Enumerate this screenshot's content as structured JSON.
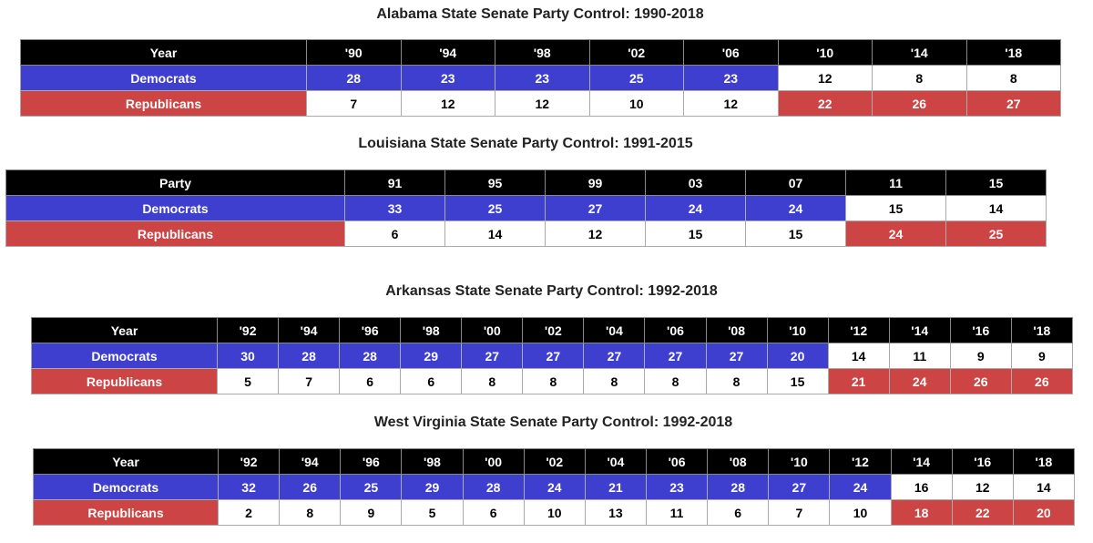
{
  "tables": [
    {
      "title": "Alabama State Senate Party Control: 1990-2018",
      "header": [
        "Year",
        "'90",
        "'94",
        "'98",
        "'02",
        "'06",
        "'10",
        "'14",
        "'18"
      ],
      "rows": [
        {
          "label": "Democrats",
          "values": [
            28,
            23,
            23,
            25,
            23,
            12,
            8,
            8
          ]
        },
        {
          "label": "Republicans",
          "values": [
            7,
            12,
            12,
            10,
            12,
            22,
            26,
            27
          ]
        }
      ]
    },
    {
      "title": "Louisiana State Senate Party Control: 1991-2015",
      "header": [
        "Party",
        "91",
        "95",
        "99",
        "03",
        "07",
        "11",
        "15"
      ],
      "rows": [
        {
          "label": "Democrats",
          "values": [
            33,
            25,
            27,
            24,
            24,
            15,
            14
          ]
        },
        {
          "label": "Republicans",
          "values": [
            6,
            14,
            12,
            15,
            15,
            24,
            25
          ]
        }
      ]
    },
    {
      "title": "Arkansas State Senate Party Control: 1992-2018",
      "header": [
        "Year",
        "'92",
        "'94",
        "'96",
        "'98",
        "'00",
        "'02",
        "'04",
        "'06",
        "'08",
        "'10",
        "'12",
        "'14",
        "'16",
        "'18"
      ],
      "rows": [
        {
          "label": "Democrats",
          "values": [
            30,
            28,
            28,
            29,
            27,
            27,
            27,
            27,
            27,
            20,
            14,
            11,
            9,
            9
          ]
        },
        {
          "label": "Republicans",
          "values": [
            5,
            7,
            6,
            6,
            8,
            8,
            8,
            8,
            8,
            15,
            21,
            24,
            26,
            26
          ]
        }
      ]
    },
    {
      "title": "West Virginia State Senate Party Control: 1992-2018",
      "header": [
        "Year",
        "'92",
        "'94",
        "'96",
        "'98",
        "'00",
        "'02",
        "'04",
        "'06",
        "'08",
        "'10",
        "'12",
        "'14",
        "'16",
        "'18"
      ],
      "rows": [
        {
          "label": "Democrats",
          "values": [
            32,
            26,
            25,
            29,
            28,
            24,
            21,
            23,
            28,
            27,
            24,
            16,
            12,
            14
          ]
        },
        {
          "label": "Republicans",
          "values": [
            2,
            8,
            9,
            5,
            6,
            10,
            13,
            11,
            6,
            7,
            10,
            18,
            22,
            20
          ]
        }
      ]
    }
  ]
}
